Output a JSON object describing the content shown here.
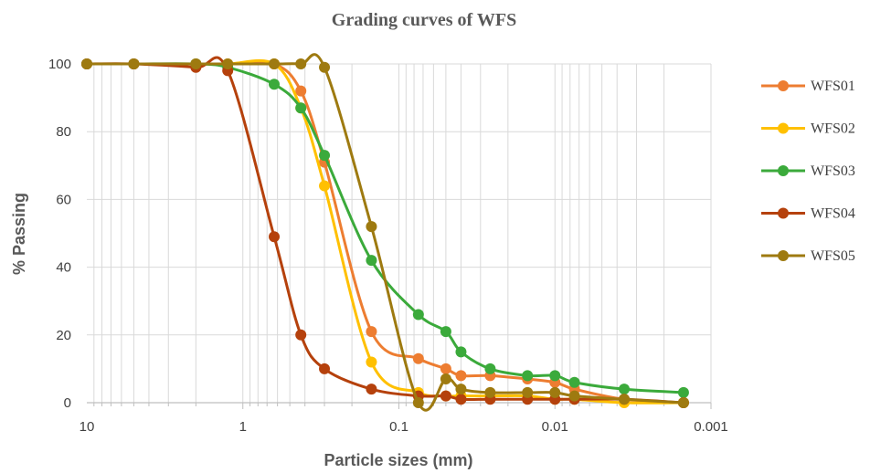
{
  "chart_data": {
    "type": "line",
    "title": "Grading curves of WFS",
    "xlabel": "Particle sizes (mm)",
    "ylabel": "% Passing",
    "x_scale": "log",
    "x_reversed": true,
    "xlim": [
      10,
      0.001
    ],
    "ylim": [
      0,
      100
    ],
    "x_ticks": [
      10,
      1,
      0.1,
      0.01,
      0.001
    ],
    "x_tick_labels": [
      "10",
      "1",
      "0.1",
      "0.01",
      "0.001"
    ],
    "y_ticks": [
      0,
      20,
      40,
      60,
      80,
      100
    ],
    "y_tick_labels": [
      "0",
      "20",
      "40",
      "60",
      "80",
      "100"
    ],
    "grid": true,
    "legend_position": "right",
    "series": [
      {
        "name": "WFS01",
        "color": "#ED7D31",
        "points": [
          [
            10,
            100
          ],
          [
            5,
            100
          ],
          [
            2,
            100
          ],
          [
            1.25,
            100
          ],
          [
            0.63,
            100
          ],
          [
            0.425,
            92
          ],
          [
            0.3,
            71
          ],
          [
            0.15,
            21
          ],
          [
            0.075,
            13
          ],
          [
            0.05,
            10
          ],
          [
            0.04,
            8
          ],
          [
            0.026,
            8
          ],
          [
            0.015,
            7
          ],
          [
            0.01,
            6
          ],
          [
            0.0075,
            4
          ],
          [
            0.0036,
            1
          ],
          [
            0.0015,
            0
          ]
        ]
      },
      {
        "name": "WFS02",
        "color": "#FFC000",
        "points": [
          [
            10,
            100
          ],
          [
            5,
            100
          ],
          [
            2,
            100
          ],
          [
            1.25,
            100
          ],
          [
            0.63,
            100
          ],
          [
            0.425,
            87
          ],
          [
            0.3,
            64
          ],
          [
            0.15,
            12
          ],
          [
            0.075,
            3
          ],
          [
            0.05,
            2
          ],
          [
            0.04,
            2
          ],
          [
            0.026,
            2
          ],
          [
            0.015,
            2
          ],
          [
            0.01,
            1
          ],
          [
            0.0075,
            1
          ],
          [
            0.0036,
            0
          ],
          [
            0.0015,
            0
          ]
        ]
      },
      {
        "name": "WFS03",
        "color": "#3BAA3B",
        "points": [
          [
            10,
            100
          ],
          [
            5,
            100
          ],
          [
            2,
            100
          ],
          [
            1.25,
            99
          ],
          [
            0.63,
            94
          ],
          [
            0.425,
            87
          ],
          [
            0.3,
            73
          ],
          [
            0.15,
            42
          ],
          [
            0.075,
            26
          ],
          [
            0.05,
            21
          ],
          [
            0.04,
            15
          ],
          [
            0.026,
            10
          ],
          [
            0.015,
            8
          ],
          [
            0.01,
            8
          ],
          [
            0.0075,
            6
          ],
          [
            0.0036,
            4
          ],
          [
            0.0015,
            3
          ]
        ]
      },
      {
        "name": "WFS04",
        "color": "#B5410C",
        "points": [
          [
            10,
            100
          ],
          [
            5,
            100
          ],
          [
            2,
            99
          ],
          [
            1.25,
            98
          ],
          [
            0.63,
            49
          ],
          [
            0.425,
            20
          ],
          [
            0.3,
            10
          ],
          [
            0.15,
            4
          ],
          [
            0.075,
            2
          ],
          [
            0.05,
            2
          ],
          [
            0.04,
            1
          ],
          [
            0.026,
            1
          ],
          [
            0.015,
            1
          ],
          [
            0.01,
            1
          ],
          [
            0.0075,
            1
          ],
          [
            0.0036,
            1
          ],
          [
            0.0015,
            0
          ]
        ]
      },
      {
        "name": "WFS05",
        "color": "#9E7A10",
        "points": [
          [
            10,
            100
          ],
          [
            5,
            100
          ],
          [
            2,
            100
          ],
          [
            1.25,
            100
          ],
          [
            0.63,
            100
          ],
          [
            0.425,
            100
          ],
          [
            0.3,
            99
          ],
          [
            0.15,
            52
          ],
          [
            0.075,
            0
          ],
          [
            0.05,
            7
          ],
          [
            0.04,
            4
          ],
          [
            0.026,
            3
          ],
          [
            0.015,
            3
          ],
          [
            0.01,
            3
          ],
          [
            0.0075,
            2
          ],
          [
            0.0036,
            1
          ],
          [
            0.0015,
            0
          ]
        ]
      }
    ]
  }
}
